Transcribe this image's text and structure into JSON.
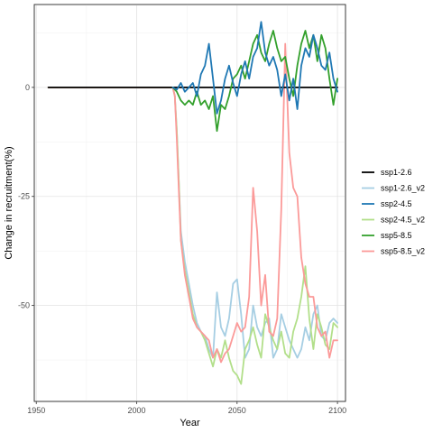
{
  "chart_data": {
    "type": "line",
    "title": "",
    "xlabel": "Year",
    "ylabel": "Change in recruitment(%)",
    "xlim": [
      1949,
      2104
    ],
    "ylim": [
      -72,
      19
    ],
    "x_ticks": [
      1950,
      2000,
      2050,
      2100
    ],
    "y_ticks": [
      0,
      -25,
      -50
    ],
    "x_tick_labels": [
      "1950",
      "2000",
      "2050",
      "2100"
    ],
    "y_tick_labels": [
      "0",
      "-25",
      "-50"
    ],
    "grid": true,
    "legend_position": "right",
    "series": [
      {
        "name": "ssp1-2.6",
        "color": "#000000",
        "points": [
          [
            1956,
            0
          ],
          [
            2018,
            0
          ],
          [
            2020,
            0
          ],
          [
            2100,
            0
          ]
        ]
      },
      {
        "name": "ssp1-2.6_v2",
        "color": "#a6cee3",
        "points": [
          [
            1956,
            0
          ],
          [
            2018,
            0
          ],
          [
            2019,
            -2
          ],
          [
            2020,
            -10
          ],
          [
            2021,
            -22
          ],
          [
            2022,
            -33
          ],
          [
            2024,
            -40
          ],
          [
            2026,
            -45
          ],
          [
            2028,
            -50
          ],
          [
            2030,
            -54
          ],
          [
            2032,
            -56
          ],
          [
            2034,
            -57
          ],
          [
            2036,
            -60
          ],
          [
            2038,
            -62
          ],
          [
            2040,
            -47
          ],
          [
            2042,
            -55
          ],
          [
            2044,
            -57
          ],
          [
            2046,
            -53
          ],
          [
            2048,
            -45
          ],
          [
            2050,
            -44
          ],
          [
            2052,
            -52
          ],
          [
            2054,
            -62
          ],
          [
            2056,
            -60
          ],
          [
            2058,
            -50
          ],
          [
            2060,
            -55
          ],
          [
            2062,
            -57
          ],
          [
            2064,
            -54
          ],
          [
            2066,
            -53
          ],
          [
            2068,
            -62
          ],
          [
            2070,
            -60
          ],
          [
            2072,
            -52
          ],
          [
            2074,
            -55
          ],
          [
            2076,
            -58
          ],
          [
            2078,
            -60
          ],
          [
            2080,
            -62
          ],
          [
            2082,
            -60
          ],
          [
            2084,
            -55
          ],
          [
            2086,
            -58
          ],
          [
            2088,
            -52
          ],
          [
            2090,
            -50
          ],
          [
            2092,
            -57
          ],
          [
            2094,
            -58
          ],
          [
            2096,
            -54
          ],
          [
            2098,
            -53
          ],
          [
            2100,
            -54
          ]
        ]
      },
      {
        "name": "ssp2-4.5",
        "color": "#1f78b4",
        "points": [
          [
            2018,
            0
          ],
          [
            2020,
            -0.5
          ],
          [
            2022,
            1
          ],
          [
            2024,
            -1
          ],
          [
            2026,
            0
          ],
          [
            2028,
            1
          ],
          [
            2030,
            -2
          ],
          [
            2032,
            3
          ],
          [
            2034,
            5
          ],
          [
            2036,
            10
          ],
          [
            2038,
            2
          ],
          [
            2040,
            -6
          ],
          [
            2042,
            -3
          ],
          [
            2044,
            2
          ],
          [
            2046,
            5
          ],
          [
            2048,
            1
          ],
          [
            2050,
            -2
          ],
          [
            2052,
            3
          ],
          [
            2054,
            6
          ],
          [
            2056,
            2
          ],
          [
            2058,
            7
          ],
          [
            2060,
            9
          ],
          [
            2062,
            15
          ],
          [
            2064,
            8
          ],
          [
            2066,
            5
          ],
          [
            2068,
            7
          ],
          [
            2070,
            4
          ],
          [
            2072,
            -2
          ],
          [
            2074,
            3
          ],
          [
            2076,
            -3
          ],
          [
            2078,
            2
          ],
          [
            2080,
            -5
          ],
          [
            2082,
            5
          ],
          [
            2084,
            9
          ],
          [
            2086,
            7
          ],
          [
            2088,
            12
          ],
          [
            2090,
            9
          ],
          [
            2092,
            5
          ],
          [
            2094,
            4
          ],
          [
            2096,
            8
          ],
          [
            2098,
            2
          ],
          [
            2100,
            -1
          ]
        ]
      },
      {
        "name": "ssp2-4.5_v2",
        "color": "#b2df8a",
        "points": [
          [
            1956,
            0
          ],
          [
            2018,
            0
          ],
          [
            2019,
            -2
          ],
          [
            2020,
            -10
          ],
          [
            2021,
            -22
          ],
          [
            2022,
            -35
          ],
          [
            2024,
            -42
          ],
          [
            2026,
            -47
          ],
          [
            2028,
            -52
          ],
          [
            2030,
            -55
          ],
          [
            2032,
            -56
          ],
          [
            2034,
            -58
          ],
          [
            2036,
            -61
          ],
          [
            2038,
            -64
          ],
          [
            2040,
            -60
          ],
          [
            2042,
            -62
          ],
          [
            2044,
            -58
          ],
          [
            2046,
            -62
          ],
          [
            2048,
            -65
          ],
          [
            2050,
            -66
          ],
          [
            2052,
            -68
          ],
          [
            2054,
            -60
          ],
          [
            2056,
            -58
          ],
          [
            2058,
            -55
          ],
          [
            2060,
            -59
          ],
          [
            2062,
            -62
          ],
          [
            2064,
            -52
          ],
          [
            2066,
            -55
          ],
          [
            2068,
            -58
          ],
          [
            2070,
            -60
          ],
          [
            2072,
            -56
          ],
          [
            2074,
            -61
          ],
          [
            2076,
            -62
          ],
          [
            2078,
            -56
          ],
          [
            2080,
            -53
          ],
          [
            2082,
            -48
          ],
          [
            2084,
            -41
          ],
          [
            2086,
            -53
          ],
          [
            2088,
            -60
          ],
          [
            2090,
            -52
          ],
          [
            2092,
            -55
          ],
          [
            2094,
            -59
          ],
          [
            2096,
            -60
          ],
          [
            2098,
            -54
          ],
          [
            2100,
            -55
          ]
        ]
      },
      {
        "name": "ssp5-8.5",
        "color": "#33a02c",
        "points": [
          [
            2018,
            0
          ],
          [
            2020,
            -1
          ],
          [
            2022,
            -3
          ],
          [
            2024,
            -4
          ],
          [
            2026,
            -3
          ],
          [
            2028,
            -4
          ],
          [
            2030,
            -1
          ],
          [
            2032,
            -4
          ],
          [
            2034,
            -3
          ],
          [
            2036,
            -5
          ],
          [
            2038,
            -2
          ],
          [
            2040,
            -10
          ],
          [
            2042,
            -4
          ],
          [
            2044,
            -5
          ],
          [
            2046,
            -2
          ],
          [
            2048,
            2
          ],
          [
            2050,
            3
          ],
          [
            2052,
            5
          ],
          [
            2054,
            2
          ],
          [
            2056,
            6
          ],
          [
            2058,
            10
          ],
          [
            2060,
            12
          ],
          [
            2062,
            8
          ],
          [
            2064,
            6
          ],
          [
            2066,
            10
          ],
          [
            2068,
            13
          ],
          [
            2070,
            9
          ],
          [
            2072,
            6
          ],
          [
            2074,
            7
          ],
          [
            2076,
            2
          ],
          [
            2078,
            -2
          ],
          [
            2080,
            5
          ],
          [
            2082,
            10
          ],
          [
            2084,
            13
          ],
          [
            2086,
            9
          ],
          [
            2088,
            12
          ],
          [
            2090,
            6
          ],
          [
            2092,
            12
          ],
          [
            2094,
            9
          ],
          [
            2096,
            2
          ],
          [
            2098,
            -4
          ],
          [
            2100,
            2
          ]
        ]
      },
      {
        "name": "ssp5-8.5_v2",
        "color": "#fb9a99",
        "points": [
          [
            1956,
            0
          ],
          [
            2018,
            0
          ],
          [
            2019,
            -2
          ],
          [
            2020,
            -12
          ],
          [
            2021,
            -24
          ],
          [
            2022,
            -35
          ],
          [
            2024,
            -43
          ],
          [
            2026,
            -48
          ],
          [
            2028,
            -53
          ],
          [
            2030,
            -55
          ],
          [
            2032,
            -56
          ],
          [
            2034,
            -57
          ],
          [
            2036,
            -58
          ],
          [
            2038,
            -62
          ],
          [
            2040,
            -60
          ],
          [
            2042,
            -63
          ],
          [
            2044,
            -61
          ],
          [
            2046,
            -60
          ],
          [
            2048,
            -57
          ],
          [
            2050,
            -54
          ],
          [
            2052,
            -56
          ],
          [
            2054,
            -55
          ],
          [
            2056,
            -48
          ],
          [
            2058,
            -23
          ],
          [
            2060,
            -33
          ],
          [
            2062,
            -50
          ],
          [
            2064,
            -43
          ],
          [
            2066,
            -56
          ],
          [
            2068,
            -57
          ],
          [
            2070,
            -53
          ],
          [
            2072,
            -28
          ],
          [
            2074,
            10
          ],
          [
            2076,
            -15
          ],
          [
            2078,
            -23
          ],
          [
            2080,
            -25
          ],
          [
            2082,
            -39
          ],
          [
            2084,
            -45
          ],
          [
            2086,
            -48
          ],
          [
            2088,
            -48
          ],
          [
            2090,
            -55
          ],
          [
            2092,
            -57
          ],
          [
            2094,
            -56
          ],
          [
            2096,
            -62
          ],
          [
            2098,
            -58
          ],
          [
            2100,
            -58
          ]
        ]
      }
    ]
  }
}
